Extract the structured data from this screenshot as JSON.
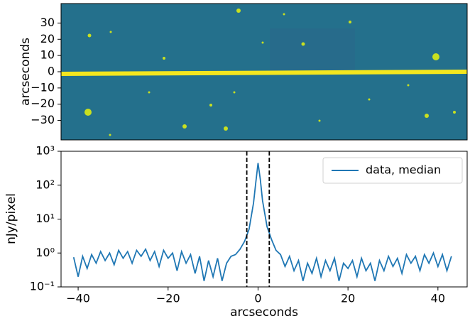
{
  "chart_data": [
    {
      "type": "image",
      "ylabel": "arcseconds",
      "ylim": [
        -42,
        42
      ],
      "yticks": [
        30,
        20,
        10,
        0,
        {
          "value": -10,
          "label": "−10"
        },
        {
          "value": -20,
          "label": "−20"
        },
        {
          "value": -30,
          "label": "−30"
        }
      ]
    },
    {
      "type": "line",
      "xlabel": "arcseconds",
      "ylabel": "nJy/pixel",
      "log_y": true,
      "xlim": [
        -43.8,
        46.5
      ],
      "xticks": [
        {
          "value": -40,
          "label": "−40"
        },
        {
          "value": -20,
          "label": "−20"
        },
        0,
        20,
        40
      ],
      "ylim": [
        0.1,
        1000
      ],
      "yticks": [
        {
          "value": 0.1,
          "label": "10⁻¹"
        },
        {
          "value": 1,
          "label": "10⁰"
        },
        {
          "value": 10,
          "label": "10¹"
        },
        {
          "value": 100,
          "label": "10²"
        },
        {
          "value": 1000,
          "label": "10³"
        }
      ],
      "vlines": [
        -2.5,
        2.5
      ],
      "legend": "upper right",
      "x": [
        -41,
        -40,
        -39,
        -38,
        -37,
        -36,
        -35,
        -34,
        -33,
        -32,
        -31,
        -30,
        -29,
        -28,
        -27,
        -26,
        -25,
        -24,
        -23,
        -22,
        -21,
        -20,
        -19,
        -18,
        -17,
        -16,
        -15,
        -14,
        -13,
        -12,
        -11,
        -10,
        -9,
        -8,
        -7,
        -6,
        -5,
        -4,
        -3,
        -2,
        -1,
        -0.5,
        0,
        0.5,
        1,
        2,
        3,
        4,
        5,
        6,
        7,
        8,
        9,
        10,
        11,
        12,
        13,
        14,
        15,
        16,
        17,
        18,
        19,
        20,
        21,
        22,
        23,
        24,
        25,
        26,
        27,
        28,
        29,
        30,
        31,
        32,
        33,
        34,
        35,
        36,
        37,
        38,
        39,
        40,
        41,
        42,
        43
      ],
      "series": [
        {
          "name": "data, median",
          "color": "#1f77b4",
          "values": [
            0.75,
            0.2,
            0.8,
            0.35,
            0.9,
            0.5,
            1.1,
            0.6,
            1.0,
            0.45,
            1.2,
            0.7,
            1.1,
            0.5,
            1.2,
            0.8,
            1.3,
            0.6,
            1.1,
            0.4,
            1.2,
            0.7,
            1.0,
            0.3,
            1.1,
            0.5,
            0.9,
            0.25,
            0.8,
            0.15,
            0.6,
            0.2,
            0.7,
            0.15,
            0.5,
            0.8,
            0.9,
            1.3,
            2.2,
            5,
            30,
            120,
            450,
            150,
            35,
            6,
            2.5,
            1.2,
            0.9,
            0.4,
            0.8,
            0.3,
            0.6,
            0.15,
            0.5,
            0.25,
            0.7,
            0.2,
            0.6,
            0.3,
            0.7,
            0.15,
            0.5,
            0.35,
            0.6,
            0.2,
            0.7,
            0.3,
            0.5,
            0.15,
            0.6,
            0.3,
            0.8,
            0.4,
            0.7,
            0.25,
            0.9,
            0.5,
            0.8,
            0.3,
            0.9,
            0.5,
            1.0,
            0.4,
            0.9,
            0.3,
            0.8
          ]
        }
      ]
    }
  ]
}
